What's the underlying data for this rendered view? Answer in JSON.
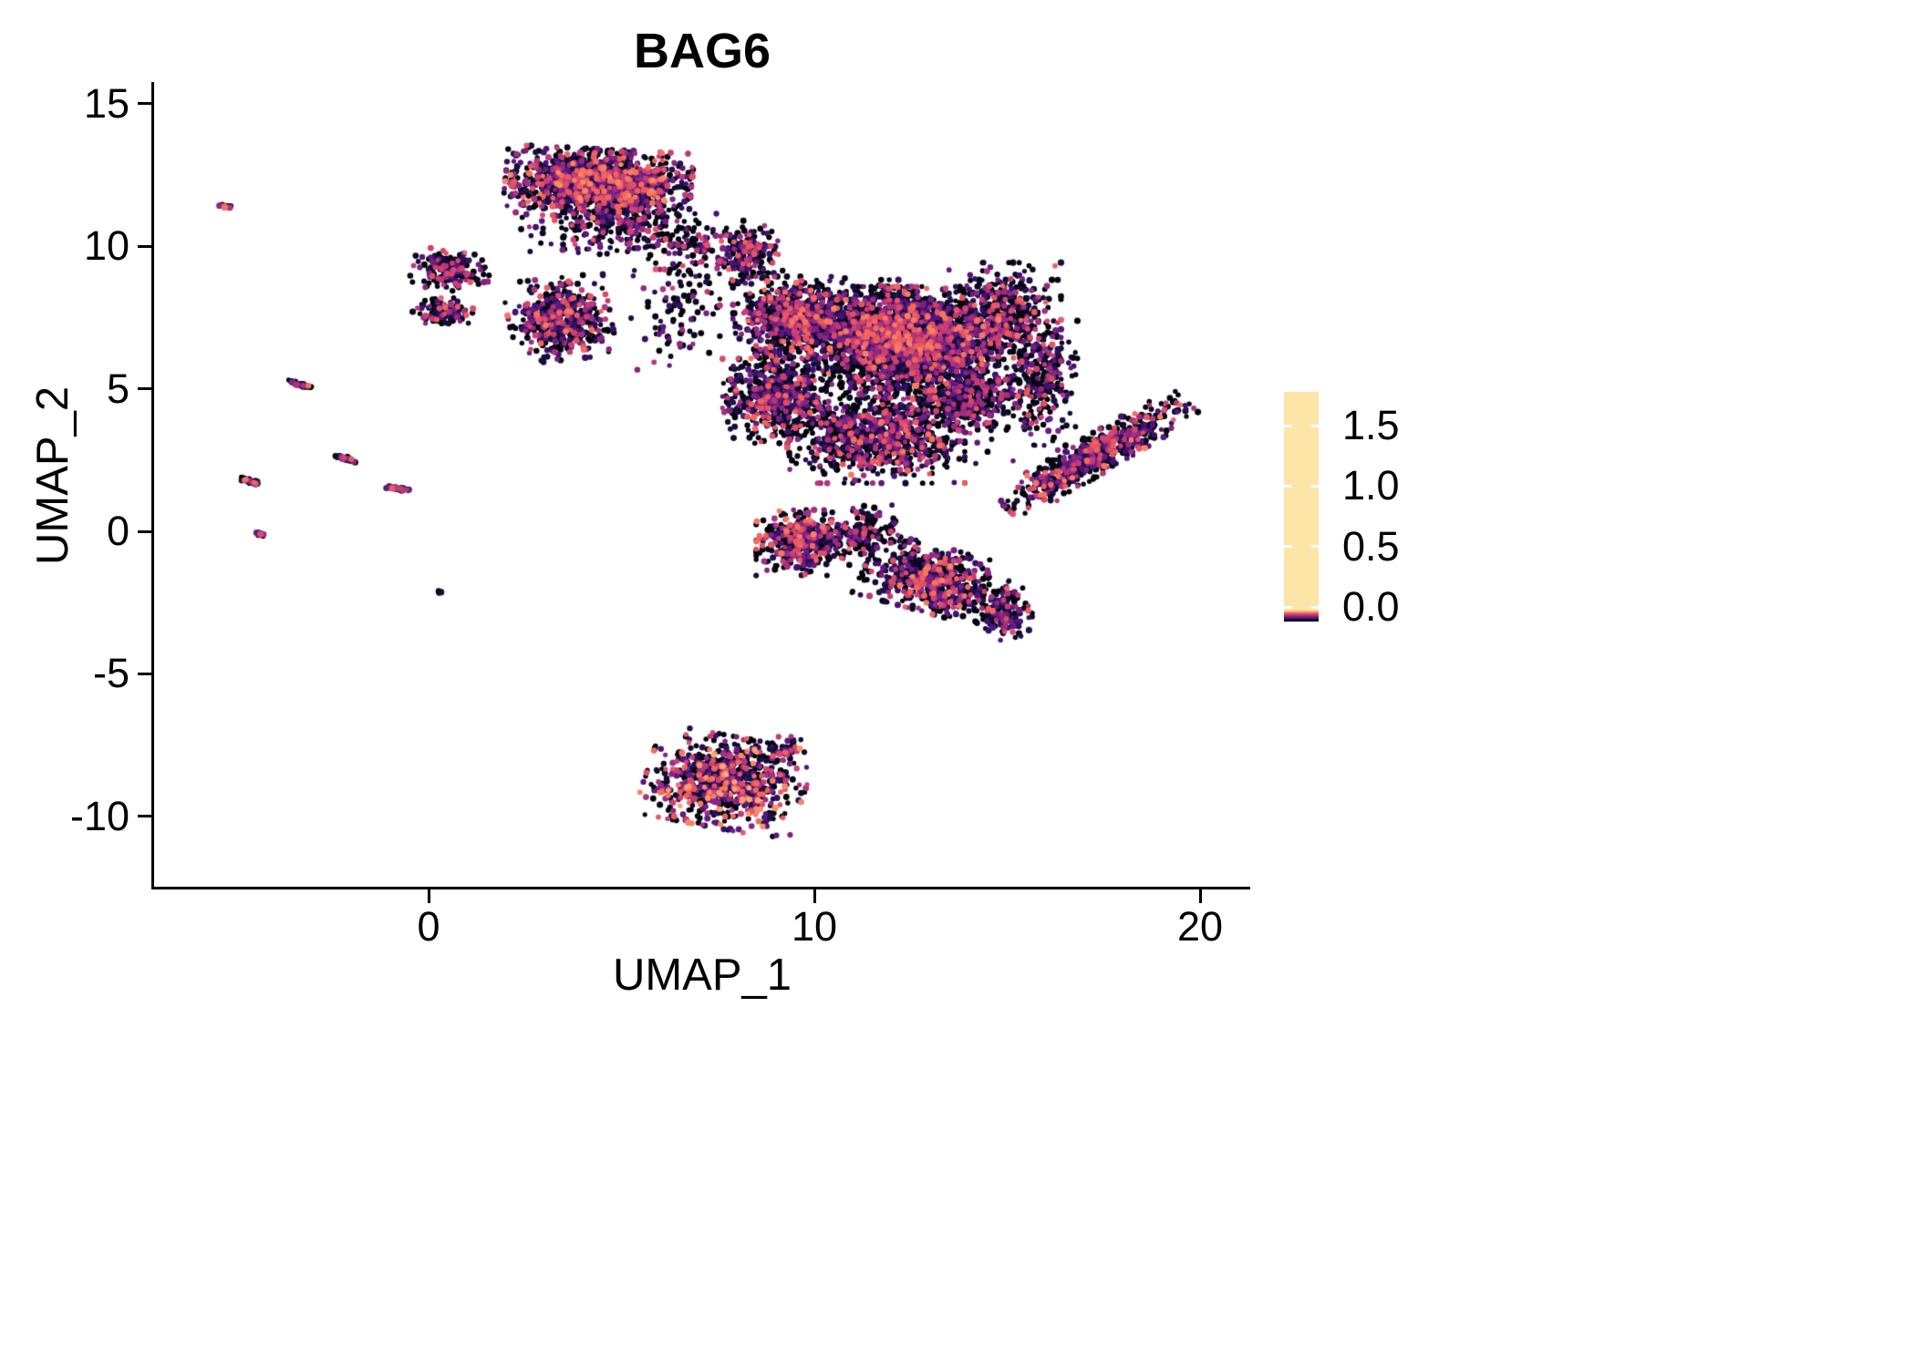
{
  "figure": {
    "background": "#ffffff"
  },
  "chart_data": {
    "type": "scatter",
    "title": "BAG6",
    "xlabel": "UMAP_1",
    "ylabel": "UMAP_2",
    "xlim": [
      -7.1,
      21.3
    ],
    "ylim": [
      -12.5,
      15.8
    ],
    "grid": false,
    "x_ticks": [
      {
        "value": 0,
        "label": "0"
      },
      {
        "value": 10,
        "label": "10"
      },
      {
        "value": 20,
        "label": "20"
      }
    ],
    "y_ticks": [
      {
        "value": 15,
        "label": "15"
      },
      {
        "value": 10,
        "label": "10"
      },
      {
        "value": 5,
        "label": "5"
      },
      {
        "value": 0,
        "label": "0"
      },
      {
        "value": -5,
        "label": "-5"
      },
      {
        "value": -10,
        "label": "-10"
      }
    ],
    "colorbar": {
      "position": "right",
      "vmin": -0.12,
      "vmax": 1.78,
      "ticks": [
        {
          "value": 1.5,
          "label": "1.5"
        },
        {
          "value": 1.0,
          "label": "1.0"
        },
        {
          "value": 0.5,
          "label": "0.5"
        },
        {
          "value": 0.0,
          "label": "0.0"
        }
      ]
    },
    "color_scale_max": 1.88,
    "colormap_name": "magma",
    "colormap_stops": [
      [
        0.0,
        "#000004"
      ],
      [
        0.111,
        "#180f3e"
      ],
      [
        0.222,
        "#451077"
      ],
      [
        0.333,
        "#721f81"
      ],
      [
        0.444,
        "#9f2f7f"
      ],
      [
        0.556,
        "#cd4071"
      ],
      [
        0.667,
        "#f1605d"
      ],
      [
        0.778,
        "#fd9567"
      ],
      [
        0.889,
        "#fec98d"
      ],
      [
        1.0,
        "#fcfdbf"
      ]
    ],
    "seed": 42,
    "point_radius_px": [
      2.6,
      3.6
    ],
    "clusters": [
      {
        "name": "top",
        "cx": 4.4,
        "cy": 12.2,
        "rx": 2.1,
        "ry": 1.05,
        "rot": -4,
        "n": 1500,
        "p0": 0.42,
        "emax": 1.45
      },
      {
        "name": "top-halo",
        "cx": 4.7,
        "cy": 10.7,
        "rx": 2.0,
        "ry": 0.9,
        "rot": 0,
        "n": 230,
        "p0": 0.52,
        "emax": 1.25
      },
      {
        "name": "top-right-scatter",
        "cx": 6.6,
        "cy": 9.9,
        "rx": 1.1,
        "ry": 1.3,
        "rot": 0,
        "n": 110,
        "p0": 0.55,
        "emax": 1.2
      },
      {
        "name": "left-blob-a",
        "cx": 0.55,
        "cy": 9.15,
        "rx": 0.9,
        "ry": 0.6,
        "rot": -10,
        "n": 190,
        "p0": 0.5,
        "emax": 1.3
      },
      {
        "name": "left-blob-b",
        "cx": 0.45,
        "cy": 7.7,
        "rx": 0.75,
        "ry": 0.42,
        "rot": 0,
        "n": 110,
        "p0": 0.5,
        "emax": 1.3
      },
      {
        "name": "mid-left",
        "cx": 3.4,
        "cy": 7.45,
        "rx": 1.15,
        "ry": 1.25,
        "rot": 8,
        "n": 520,
        "p0": 0.46,
        "emax": 1.35
      },
      {
        "name": "gap-scatter",
        "cx": 6.4,
        "cy": 7.6,
        "rx": 1.0,
        "ry": 1.7,
        "rot": 0,
        "n": 80,
        "p0": 0.6,
        "emax": 1.1
      },
      {
        "name": "main-neck",
        "cx": 8.2,
        "cy": 9.8,
        "rx": 0.85,
        "ry": 0.95,
        "rot": 0,
        "n": 230,
        "p0": 0.5,
        "emax": 1.3
      },
      {
        "name": "main-core",
        "cx": 12.3,
        "cy": 6.8,
        "rx": 2.15,
        "ry": 1.55,
        "rot": 0,
        "n": 2400,
        "p0": 0.5,
        "emax": 1.4
      },
      {
        "name": "main-left",
        "cx": 9.5,
        "cy": 7.5,
        "rx": 1.4,
        "ry": 1.25,
        "rot": 0,
        "n": 800,
        "p0": 0.5,
        "emax": 1.35
      },
      {
        "name": "main-lower-left",
        "cx": 9.0,
        "cy": 4.7,
        "rx": 1.2,
        "ry": 1.4,
        "rot": 0,
        "n": 520,
        "p0": 0.5,
        "emax": 1.3
      },
      {
        "name": "main-lower",
        "cx": 11.6,
        "cy": 3.3,
        "rx": 2.0,
        "ry": 1.4,
        "rot": 0,
        "n": 800,
        "p0": 0.52,
        "emax": 1.35
      },
      {
        "name": "main-bridge",
        "cx": 13.9,
        "cy": 4.7,
        "rx": 1.25,
        "ry": 1.0,
        "rot": 0,
        "n": 340,
        "p0": 0.55,
        "emax": 1.3
      },
      {
        "name": "main-right",
        "cx": 14.9,
        "cy": 7.7,
        "rx": 1.3,
        "ry": 1.5,
        "rot": 0,
        "n": 460,
        "p0": 0.55,
        "emax": 1.3
      },
      {
        "name": "right-wing",
        "cx": 15.9,
        "cy": 5.2,
        "rx": 0.8,
        "ry": 1.9,
        "rot": 0,
        "n": 250,
        "p0": 0.6,
        "emax": 1.2
      },
      {
        "name": "main-halo",
        "cx": 12.4,
        "cy": 5.6,
        "rx": 3.4,
        "ry": 2.8,
        "rot": 0,
        "n": 650,
        "p0": 0.65,
        "emax": 1.1
      },
      {
        "name": "right-arm",
        "cx": 17.3,
        "cy": 2.7,
        "rx": 2.6,
        "ry": 0.55,
        "rot": 39,
        "n": 640,
        "p0": 0.45,
        "emax": 1.4
      },
      {
        "name": "south-a",
        "cx": 9.7,
        "cy": -0.4,
        "rx": 1.05,
        "ry": 1.0,
        "rot": 0,
        "n": 430,
        "p0": 0.45,
        "emax": 1.4
      },
      {
        "name": "south-bridge",
        "cx": 11.3,
        "cy": 0.0,
        "rx": 1.0,
        "ry": 0.9,
        "rot": 0,
        "n": 160,
        "p0": 0.58,
        "emax": 1.2
      },
      {
        "name": "south-b",
        "cx": 13.1,
        "cy": -1.7,
        "rx": 1.6,
        "ry": 1.0,
        "rot": -20,
        "n": 620,
        "p0": 0.46,
        "emax": 1.4
      },
      {
        "name": "south-tail",
        "cx": 14.9,
        "cy": -2.9,
        "rx": 0.65,
        "ry": 0.8,
        "rot": 0,
        "n": 140,
        "p0": 0.5,
        "emax": 1.3
      },
      {
        "name": "bottom",
        "cx": 7.7,
        "cy": -8.8,
        "rx": 1.8,
        "ry": 1.4,
        "rot": -14,
        "n": 800,
        "p0": 0.38,
        "emax": 1.55
      },
      {
        "name": "bottom-tail",
        "cx": 9.25,
        "cy": -7.6,
        "rx": 0.5,
        "ry": 0.35,
        "rot": 0,
        "n": 50,
        "p0": 0.45,
        "emax": 1.3
      },
      {
        "name": "streak-1",
        "cx": -5.25,
        "cy": 11.4,
        "rx": 0.17,
        "ry": 0.05,
        "rot": -18,
        "n": 22,
        "p0": 0.35,
        "emax": 1.4
      },
      {
        "name": "streak-2",
        "cx": -3.35,
        "cy": 5.15,
        "rx": 0.28,
        "ry": 0.06,
        "rot": -22,
        "n": 40,
        "p0": 0.4,
        "emax": 1.35
      },
      {
        "name": "streak-3",
        "cx": -4.6,
        "cy": 1.75,
        "rx": 0.28,
        "ry": 0.06,
        "rot": -22,
        "n": 40,
        "p0": 0.4,
        "emax": 1.35
      },
      {
        "name": "streak-4",
        "cx": -2.15,
        "cy": 2.55,
        "rx": 0.24,
        "ry": 0.06,
        "rot": -22,
        "n": 34,
        "p0": 0.4,
        "emax": 1.3
      },
      {
        "name": "streak-5",
        "cx": -0.8,
        "cy": 1.5,
        "rx": 0.3,
        "ry": 0.05,
        "rot": -10,
        "n": 36,
        "p0": 0.4,
        "emax": 1.3
      },
      {
        "name": "streak-6",
        "cx": -4.35,
        "cy": -0.1,
        "rx": 0.14,
        "ry": 0.05,
        "rot": -20,
        "n": 14,
        "p0": 0.4,
        "emax": 1.2
      },
      {
        "name": "dot-low",
        "cx": 0.3,
        "cy": -2.1,
        "rx": 0.06,
        "ry": 0.05,
        "rot": 0,
        "n": 4,
        "p0": 0.6,
        "emax": 0.8
      }
    ]
  }
}
